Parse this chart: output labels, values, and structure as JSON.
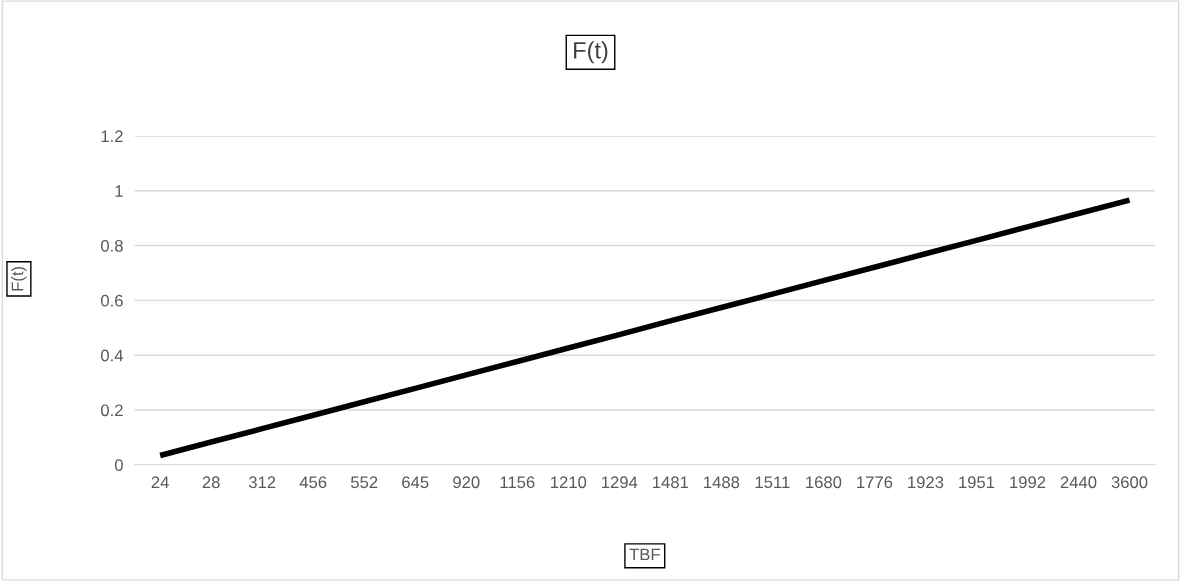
{
  "chart_data": {
    "type": "line",
    "title": "F(t)",
    "xlabel": "TBF",
    "ylabel": "F(t)",
    "categories": [
      "24",
      "28",
      "312",
      "456",
      "552",
      "645",
      "920",
      "1156",
      "1210",
      "1294",
      "1481",
      "1488",
      "1511",
      "1680",
      "1776",
      "1923",
      "1951",
      "1992",
      "2440",
      "3600"
    ],
    "series": [
      {
        "color": "#000000",
        "values": [
          0.034,
          0.083,
          0.132,
          0.181,
          0.23,
          0.279,
          0.328,
          0.377,
          0.426,
          0.475,
          0.525,
          0.574,
          0.623,
          0.672,
          0.721,
          0.77,
          0.819,
          0.868,
          0.917,
          0.966
        ]
      }
    ],
    "ylim": [
      0,
      1.2
    ],
    "yticks": [
      0,
      0.2,
      0.4,
      0.6,
      0.8,
      1,
      1.2
    ],
    "grid": "y",
    "legend": false,
    "marker": "none",
    "line_style": "solid"
  }
}
